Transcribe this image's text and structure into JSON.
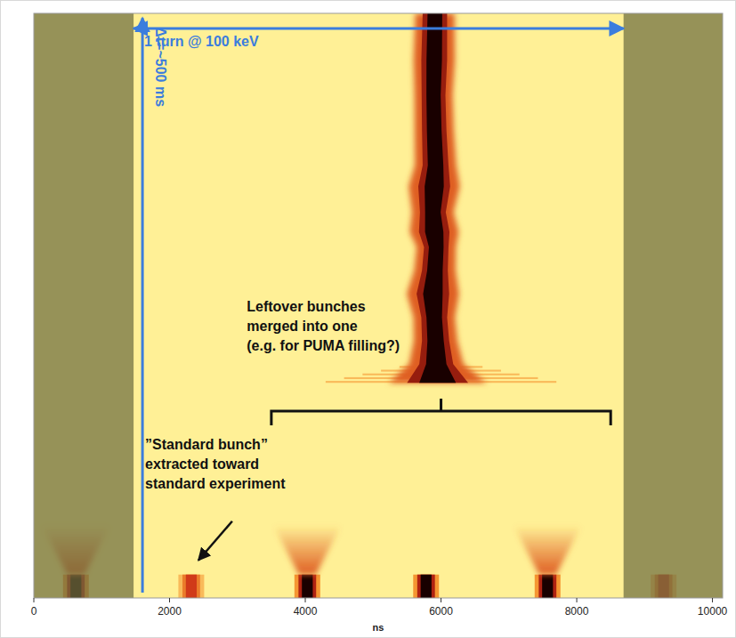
{
  "chart_data": {
    "type": "heatmap",
    "xlabel": "ns",
    "xlim": [
      0,
      10150
    ],
    "xticks": [
      0,
      2000,
      4000,
      6000,
      8000,
      10000
    ],
    "ylim": [
      0,
      500
    ],
    "tick_labels": "x",
    "bunches": {
      "x": [
        620,
        2320,
        4030,
        5780,
        7570,
        9280
      ],
      "t_start": 0,
      "t_end": 20,
      "width": 200,
      "intensity": [
        1,
        0.6,
        1,
        1,
        1,
        0.6
      ]
    },
    "debunching": {
      "x": [
        620,
        4030,
        7570
      ],
      "t_start": 20,
      "t_end": 62,
      "width_start": 250,
      "width_end": 1000,
      "intensity": 0.5
    },
    "merge_zone": {
      "x_start": 4300,
      "x_end": 7700,
      "t_start": 184,
      "t_end": 200,
      "intensity": 0.3
    },
    "merged_bunch": {
      "t": [
        184,
        200,
        220,
        240,
        260,
        280,
        300,
        313,
        330,
        352,
        370,
        400,
        430,
        460,
        500
      ],
      "x": [
        5950,
        5930,
        5920,
        5900,
        5880,
        5910,
        5930,
        5900,
        5880,
        5900,
        5920,
        5900,
        5890,
        5900,
        5910
      ],
      "width": [
        900,
        500,
        400,
        380,
        480,
        380,
        360,
        450,
        380,
        470,
        380,
        360,
        350,
        380,
        360
      ],
      "intensity": 1
    },
    "annotations": {
      "turn": {
        "text": "1 turn @ 100 keV",
        "start": 1470,
        "end": 8690
      },
      "duration": {
        "text": "Δt=~500 ms",
        "start": 0,
        "end": 496
      },
      "leftover": {
        "lines": [
          "Leftover bunches",
          "merged into one",
          "(e.g. for PUMA filling?)"
        ],
        "start": 3500,
        "end": 8500
      },
      "standard": {
        "lines": [
          "”Standard bunch”",
          "extracted toward",
          "standard experiment"
        ]
      }
    }
  }
}
